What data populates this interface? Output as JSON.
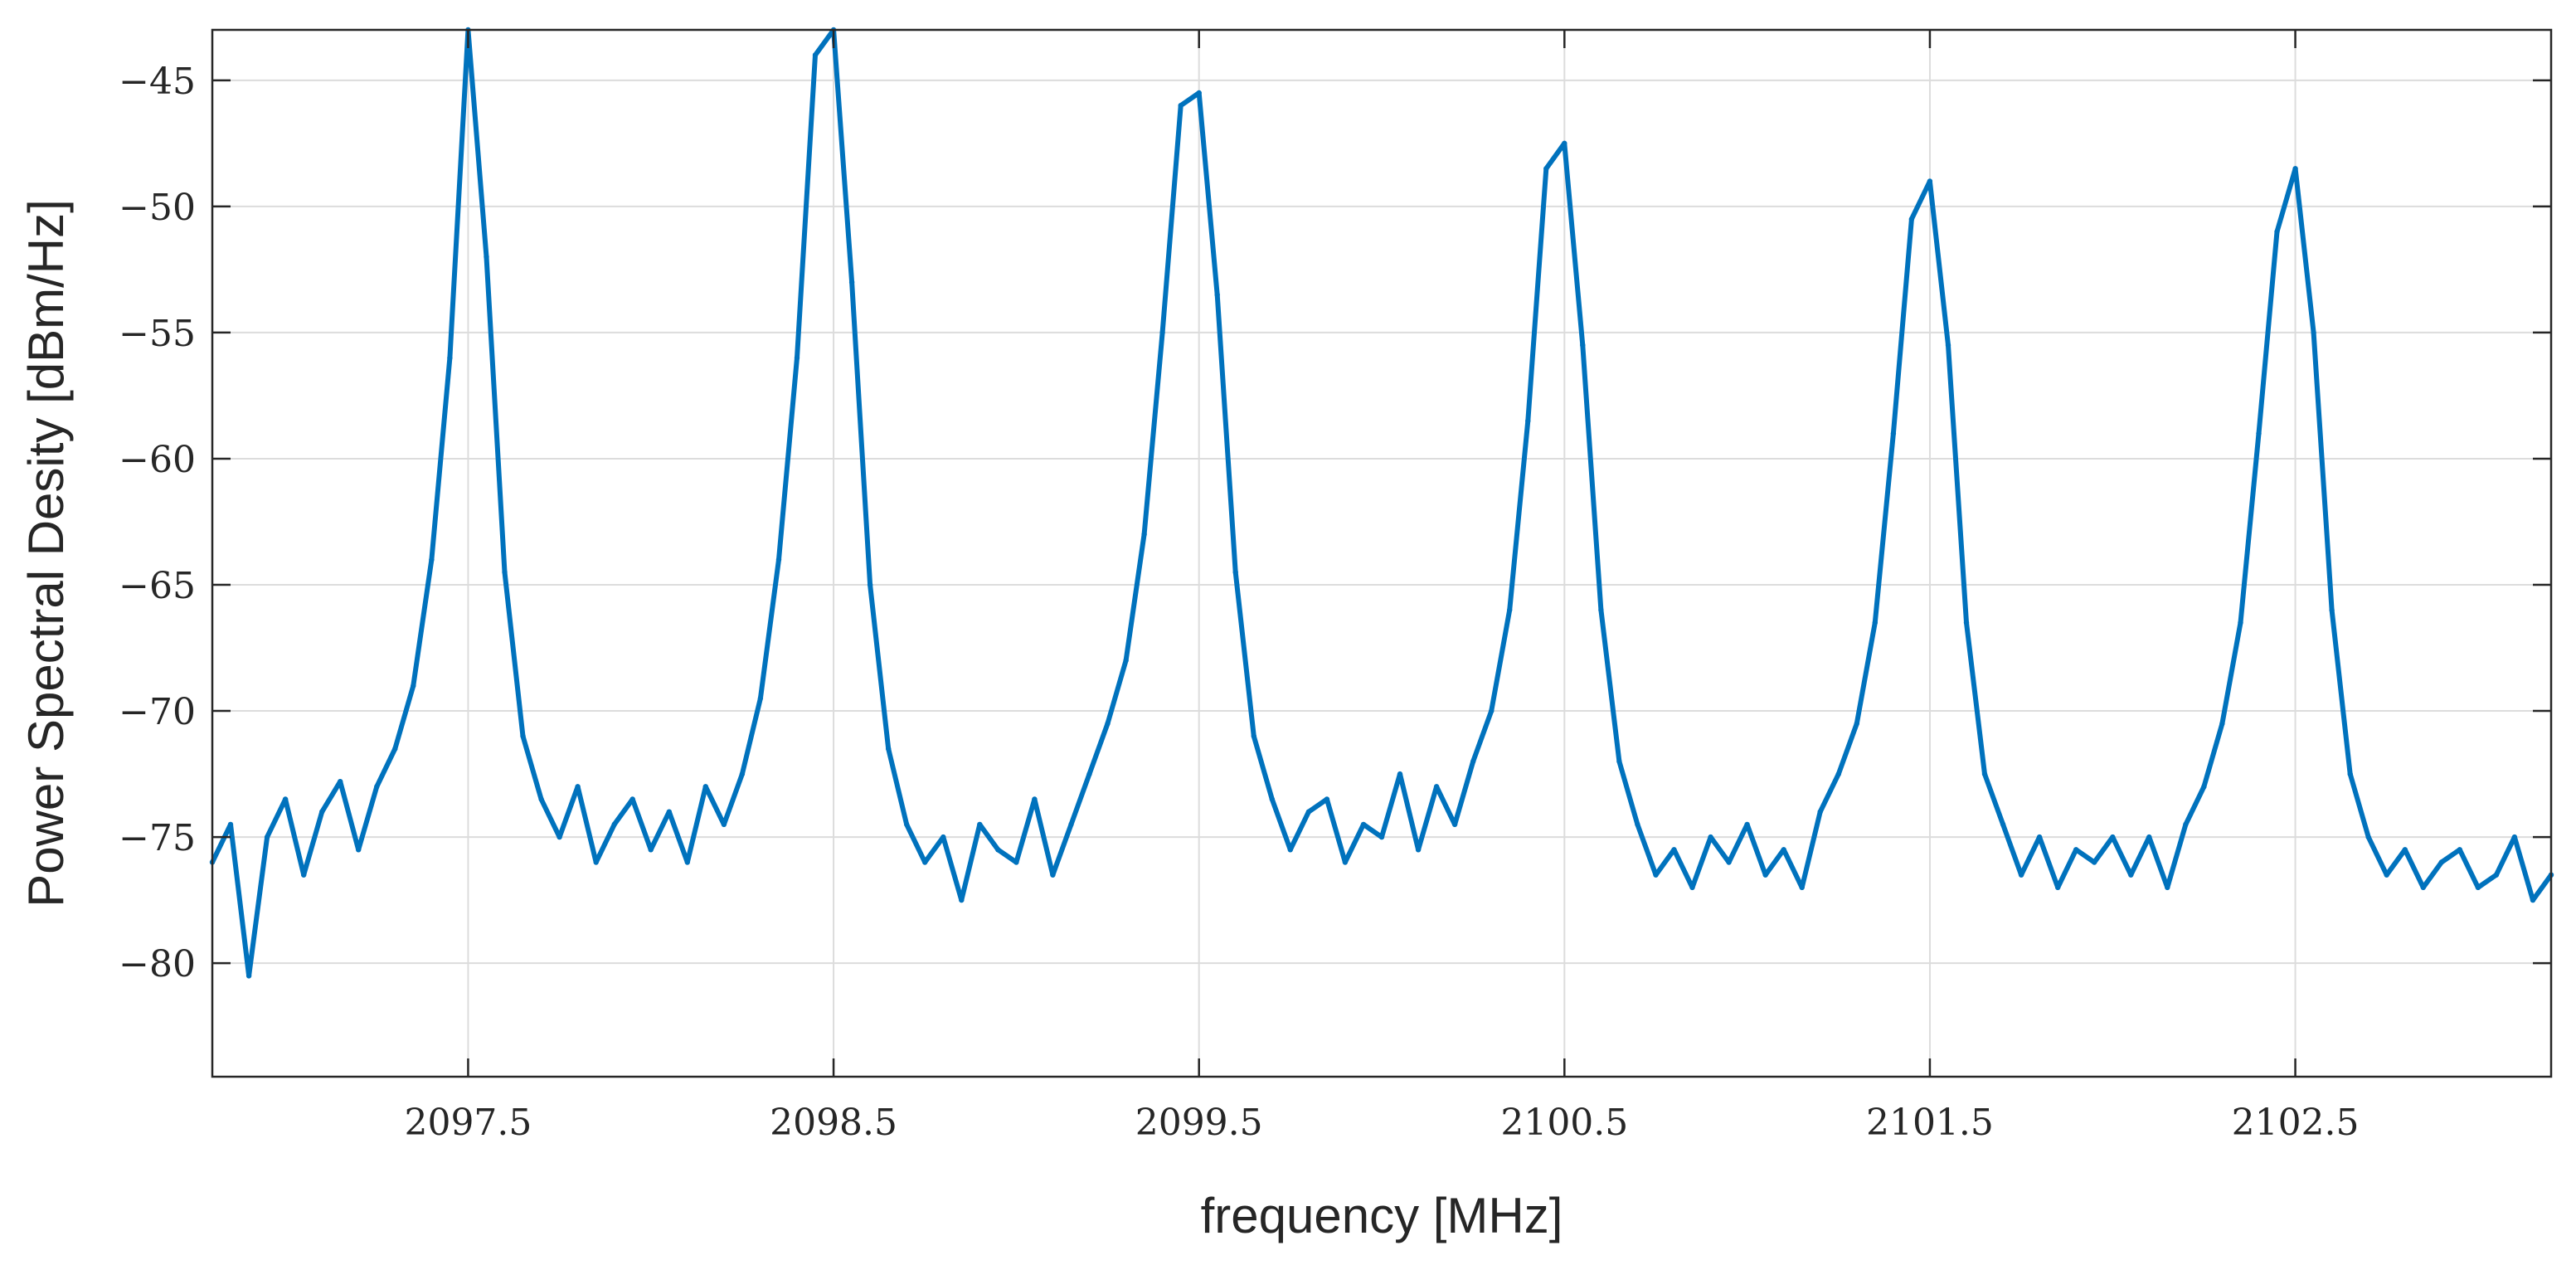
{
  "chart_data": {
    "type": "line",
    "title": "",
    "xlabel": "frequency [MHz]",
    "ylabel": "Power Spectral Desity [dBm/Hz]",
    "xlim": [
      2096.8,
      2103.2
    ],
    "ylim": [
      -84.5,
      -43
    ],
    "grid": true,
    "color": "#0072BD",
    "x_ticks": [
      2097.5,
      2098.5,
      2099.5,
      2100.5,
      2101.5,
      2102.5
    ],
    "x_tick_labels": [
      "2097.5",
      "2098.5",
      "2099.5",
      "2100.5",
      "2101.5",
      "2102.5"
    ],
    "y_ticks": [
      -45,
      -50,
      -55,
      -60,
      -65,
      -70,
      -75,
      -80
    ],
    "y_tick_labels": [
      "−45",
      "−50",
      "−55",
      "−60",
      "−65",
      "−70",
      "−75",
      "−80"
    ],
    "series": [
      {
        "x": [
          2096.8,
          2096.85,
          2096.9,
          2096.95,
          2097.0,
          2097.05,
          2097.1,
          2097.15,
          2097.2,
          2097.25,
          2097.3,
          2097.35,
          2097.4,
          2097.45,
          2097.5,
          2097.55,
          2097.6,
          2097.65,
          2097.7,
          2097.75,
          2097.8,
          2097.85,
          2097.9,
          2097.95,
          2098.0,
          2098.05,
          2098.1,
          2098.15,
          2098.2,
          2098.25,
          2098.3,
          2098.35,
          2098.4,
          2098.45,
          2098.5,
          2098.55,
          2098.6,
          2098.65,
          2098.7,
          2098.75,
          2098.8,
          2098.85,
          2098.9,
          2098.95,
          2099.0,
          2099.05,
          2099.1,
          2099.15,
          2099.2,
          2099.25,
          2099.3,
          2099.35,
          2099.4,
          2099.45,
          2099.5,
          2099.55,
          2099.6,
          2099.65,
          2099.7,
          2099.75,
          2099.8,
          2099.85,
          2099.9,
          2099.95,
          2100.0,
          2100.05,
          2100.1,
          2100.15,
          2100.2,
          2100.25,
          2100.3,
          2100.35,
          2100.4,
          2100.45,
          2100.5,
          2100.55,
          2100.6,
          2100.65,
          2100.7,
          2100.75,
          2100.8,
          2100.85,
          2100.9,
          2100.95,
          2101.0,
          2101.05,
          2101.1,
          2101.15,
          2101.2,
          2101.25,
          2101.3,
          2101.35,
          2101.4,
          2101.45,
          2101.5,
          2101.55,
          2101.6,
          2101.65,
          2101.7,
          2101.75,
          2101.8,
          2101.85,
          2101.9,
          2101.95,
          2102.0,
          2102.05,
          2102.1,
          2102.15,
          2102.2,
          2102.25,
          2102.3,
          2102.35,
          2102.4,
          2102.45,
          2102.5,
          2102.55,
          2102.6,
          2102.65,
          2102.7,
          2102.75,
          2102.8,
          2102.85,
          2102.9,
          2102.95,
          2103.0,
          2103.05,
          2103.1,
          2103.15,
          2103.2
        ],
        "y": [
          -76.0,
          -74.5,
          -80.5,
          -75.0,
          -73.5,
          -76.5,
          -74.0,
          -72.8,
          -75.5,
          -73.0,
          -71.5,
          -69.0,
          -64.0,
          -56.0,
          -43.0,
          -52.0,
          -64.5,
          -71.0,
          -73.5,
          -75.0,
          -73.0,
          -76.0,
          -74.5,
          -73.5,
          -75.5,
          -74.0,
          -76.0,
          -73.0,
          -74.5,
          -72.5,
          -69.5,
          -64.0,
          -56.0,
          -44.0,
          -43.0,
          -53.0,
          -65.0,
          -71.5,
          -74.5,
          -76.0,
          -75.0,
          -77.5,
          -74.5,
          -75.5,
          -76.0,
          -73.5,
          -76.5,
          -74.5,
          -72.5,
          -70.5,
          -68.0,
          -63.0,
          -55.0,
          -46.0,
          -45.5,
          -53.5,
          -64.5,
          -71.0,
          -73.5,
          -75.5,
          -74.0,
          -73.5,
          -76.0,
          -74.5,
          -75.0,
          -72.5,
          -75.5,
          -73.0,
          -74.5,
          -72.0,
          -70.0,
          -66.0,
          -58.5,
          -48.5,
          -47.5,
          -55.5,
          -66.0,
          -72.0,
          -74.5,
          -76.5,
          -75.5,
          -77.0,
          -75.0,
          -76.0,
          -74.5,
          -76.5,
          -75.5,
          -77.0,
          -74.0,
          -72.5,
          -70.5,
          -66.5,
          -59.0,
          -50.5,
          -49.0,
          -55.5,
          -66.5,
          -72.5,
          -74.5,
          -76.5,
          -75.0,
          -77.0,
          -75.5,
          -76.0,
          -75.0,
          -76.5,
          -75.0,
          -77.0,
          -74.5,
          -73.0,
          -70.5,
          -66.5,
          -59.0,
          -51.0,
          -48.5,
          -55.0,
          -66.0,
          -72.5,
          -75.0,
          -76.5,
          -75.5,
          -77.0,
          -76.0,
          -75.5,
          -77.0,
          -76.5,
          -75.0,
          -77.5,
          -76.5
        ]
      }
    ]
  }
}
